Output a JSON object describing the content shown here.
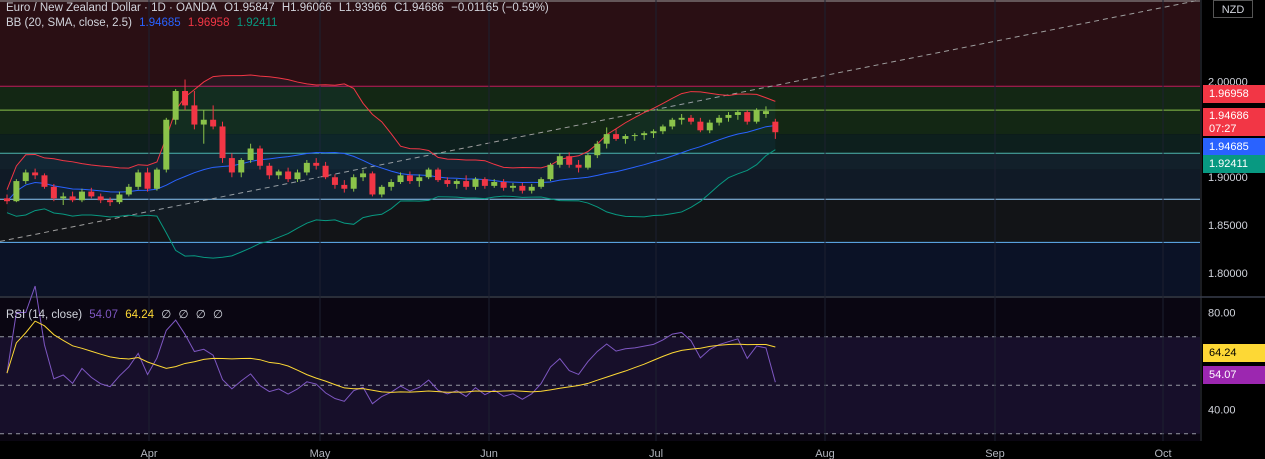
{
  "header": {
    "symbol": "Euro / New Zealand Dollar · 1D · OANDA",
    "open": "O1.95847",
    "high": "H1.96066",
    "low": "L1.93966",
    "close": "C1.94686",
    "change": "−0.01165 (−0.59%)",
    "currency": "NZD"
  },
  "bb_legend": {
    "label": "BB (20, SMA, close, 2.5)",
    "basis": "1.94685",
    "upper": "1.96958",
    "lower": "1.92411"
  },
  "rsi_legend": {
    "label": "RSI (14, close)",
    "rsi": "54.07",
    "ma": "64.24",
    "z": [
      "∅",
      "∅",
      "∅",
      "∅"
    ]
  },
  "price_labels": {
    "upper": "1.96958",
    "close": "1.94686",
    "countdown": "07:27",
    "basis": "1.94685",
    "lower": "1.92411"
  },
  "rsi_labels": {
    "ma": "64.24",
    "rsi": "54.07"
  },
  "colors": {
    "up": "#8bc34a",
    "down": "#f23645",
    "basis": "#2962ff",
    "upper": "#f23645",
    "lower": "#089981",
    "rsi": "#7e57c2",
    "rsi_ma": "#fdd835"
  },
  "chart_data": {
    "type": "candlestick",
    "price_axis": {
      "ticks": [
        "2.00000",
        "1.90000",
        "1.85000",
        "1.80000"
      ],
      "ylim": [
        1.775,
        2.085
      ]
    },
    "rsi_axis": {
      "ticks": [
        "80.00",
        "40.00"
      ],
      "ylim": [
        27,
        86
      ]
    },
    "x_ticks": [
      "Apr",
      "May",
      "Jun",
      "Jul",
      "Aug",
      "Sep",
      "Oct"
    ],
    "candles": [
      [
        1.878,
        1.882,
        1.872,
        1.875
      ],
      [
        1.875,
        1.898,
        1.874,
        1.896
      ],
      [
        1.896,
        1.908,
        1.893,
        1.905
      ],
      [
        1.905,
        1.909,
        1.898,
        1.902
      ],
      [
        1.902,
        1.904,
        1.888,
        1.89
      ],
      [
        1.89,
        1.893,
        1.875,
        1.878
      ],
      [
        1.878,
        1.884,
        1.871,
        1.88
      ],
      [
        1.88,
        1.885,
        1.874,
        1.876
      ],
      [
        1.876,
        1.888,
        1.874,
        1.885
      ],
      [
        1.885,
        1.889,
        1.878,
        1.88
      ],
      [
        1.88,
        1.883,
        1.873,
        1.876
      ],
      [
        1.876,
        1.879,
        1.87,
        1.874
      ],
      [
        1.874,
        1.885,
        1.872,
        1.882
      ],
      [
        1.882,
        1.893,
        1.88,
        1.89
      ],
      [
        1.89,
        1.908,
        1.887,
        1.905
      ],
      [
        1.905,
        1.91,
        1.885,
        1.888
      ],
      [
        1.888,
        1.91,
        1.886,
        1.908
      ],
      [
        1.908,
        1.962,
        1.905,
        1.96
      ],
      [
        1.96,
        1.992,
        1.955,
        1.99
      ],
      [
        1.99,
        2.002,
        1.97,
        1.975
      ],
      [
        1.975,
        1.99,
        1.95,
        1.955
      ],
      [
        1.955,
        1.97,
        1.935,
        1.96
      ],
      [
        1.96,
        1.975,
        1.95,
        1.953
      ],
      [
        1.953,
        1.958,
        1.915,
        1.92
      ],
      [
        1.92,
        1.925,
        1.9,
        1.905
      ],
      [
        1.905,
        1.92,
        1.9,
        1.918
      ],
      [
        1.918,
        1.935,
        1.915,
        1.93
      ],
      [
        1.93,
        1.933,
        1.908,
        1.912
      ],
      [
        1.912,
        1.915,
        1.898,
        1.902
      ],
      [
        1.902,
        1.908,
        1.898,
        1.906
      ],
      [
        1.906,
        1.91,
        1.895,
        1.898
      ],
      [
        1.898,
        1.908,
        1.895,
        1.905
      ],
      [
        1.905,
        1.918,
        1.902,
        1.915
      ],
      [
        1.915,
        1.92,
        1.908,
        1.912
      ],
      [
        1.912,
        1.916,
        1.898,
        1.9
      ],
      [
        1.9,
        1.903,
        1.888,
        1.892
      ],
      [
        1.892,
        1.897,
        1.884,
        1.888
      ],
      [
        1.888,
        1.903,
        1.885,
        1.9
      ],
      [
        1.9,
        1.908,
        1.896,
        1.904
      ],
      [
        1.904,
        1.906,
        1.88,
        1.882
      ],
      [
        1.882,
        1.892,
        1.879,
        1.89
      ],
      [
        1.89,
        1.898,
        1.886,
        1.895
      ],
      [
        1.895,
        1.905,
        1.893,
        1.902
      ],
      [
        1.902,
        1.906,
        1.893,
        1.896
      ],
      [
        1.896,
        1.903,
        1.89,
        1.9
      ],
      [
        1.9,
        1.91,
        1.898,
        1.908
      ],
      [
        1.908,
        1.91,
        1.895,
        1.897
      ],
      [
        1.897,
        1.9,
        1.89,
        1.893
      ],
      [
        1.893,
        1.898,
        1.888,
        1.896
      ],
      [
        1.896,
        1.902,
        1.887,
        1.89
      ],
      [
        1.89,
        1.9,
        1.887,
        1.898
      ],
      [
        1.898,
        1.9,
        1.888,
        1.891
      ],
      [
        1.891,
        1.898,
        1.889,
        1.895
      ],
      [
        1.895,
        1.898,
        1.886,
        1.889
      ],
      [
        1.889,
        1.894,
        1.885,
        1.891
      ],
      [
        1.891,
        1.894,
        1.883,
        1.886
      ],
      [
        1.886,
        1.893,
        1.883,
        1.89
      ],
      [
        1.89,
        1.9,
        1.888,
        1.898
      ],
      [
        1.898,
        1.915,
        1.896,
        1.913
      ],
      [
        1.913,
        1.925,
        1.91,
        1.922
      ],
      [
        1.922,
        1.926,
        1.91,
        1.913
      ],
      [
        1.913,
        1.918,
        1.905,
        1.91
      ],
      [
        1.91,
        1.925,
        1.908,
        1.923
      ],
      [
        1.923,
        1.938,
        1.92,
        1.935
      ],
      [
        1.935,
        1.952,
        1.93,
        1.945
      ],
      [
        1.945,
        1.95,
        1.938,
        1.94
      ],
      [
        1.94,
        1.945,
        1.935,
        1.943
      ],
      [
        1.943,
        1.946,
        1.938,
        1.944
      ],
      [
        1.944,
        1.948,
        1.939,
        1.946
      ],
      [
        1.946,
        1.95,
        1.941,
        1.948
      ],
      [
        1.948,
        1.955,
        1.945,
        1.953
      ],
      [
        1.953,
        1.962,
        1.95,
        1.96
      ],
      [
        1.96,
        1.966,
        1.955,
        1.962
      ],
      [
        1.962,
        1.965,
        1.955,
        1.958
      ],
      [
        1.958,
        1.962,
        1.947,
        1.949
      ],
      [
        1.949,
        1.96,
        1.946,
        1.957
      ],
      [
        1.957,
        1.965,
        1.954,
        1.962
      ],
      [
        1.962,
        1.968,
        1.958,
        1.965
      ],
      [
        1.965,
        1.97,
        1.96,
        1.968
      ],
      [
        1.968,
        1.97,
        1.955,
        1.958
      ],
      [
        1.958,
        1.972,
        1.956,
        1.97
      ],
      [
        1.966,
        1.974,
        1.962,
        1.969
      ],
      [
        1.958,
        1.961,
        1.94,
        1.947
      ]
    ]
  }
}
